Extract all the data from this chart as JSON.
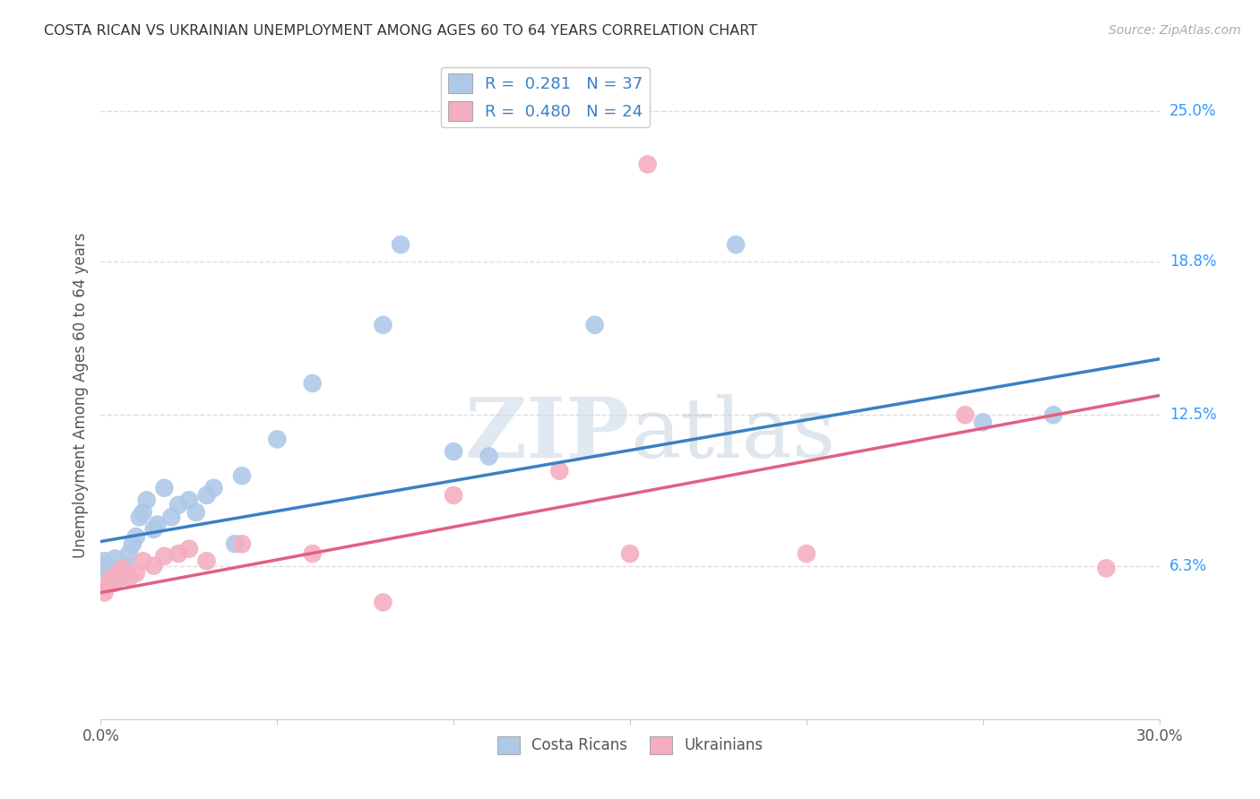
{
  "title": "COSTA RICAN VS UKRAINIAN UNEMPLOYMENT AMONG AGES 60 TO 64 YEARS CORRELATION CHART",
  "source": "Source: ZipAtlas.com",
  "ylabel": "Unemployment Among Ages 60 to 64 years",
  "xmin": 0.0,
  "xmax": 0.3,
  "ymin": 0.0,
  "ymax": 0.266,
  "ytick_labels": [
    "6.3%",
    "12.5%",
    "18.8%",
    "25.0%"
  ],
  "ytick_values": [
    0.063,
    0.125,
    0.188,
    0.25
  ],
  "xtick_values": [
    0.0,
    0.05,
    0.1,
    0.15,
    0.2,
    0.25,
    0.3
  ],
  "blue_label": "Costa Ricans",
  "pink_label": "Ukrainians",
  "blue_R": "0.281",
  "blue_N": "37",
  "pink_R": "0.480",
  "pink_N": "24",
  "blue_color": "#aec9e8",
  "pink_color": "#f4aec0",
  "blue_line_color": "#3b7fc4",
  "pink_line_color": "#e06080",
  "blue_x": [
    0.001,
    0.001,
    0.002,
    0.002,
    0.003,
    0.003,
    0.004,
    0.005,
    0.006,
    0.007,
    0.008,
    0.009,
    0.01,
    0.011,
    0.012,
    0.013,
    0.015,
    0.016,
    0.018,
    0.02,
    0.022,
    0.025,
    0.027,
    0.03,
    0.032,
    0.038,
    0.04,
    0.05,
    0.06,
    0.08,
    0.085,
    0.1,
    0.11,
    0.14,
    0.18,
    0.25,
    0.27
  ],
  "blue_y": [
    0.062,
    0.065,
    0.06,
    0.063,
    0.058,
    0.062,
    0.066,
    0.061,
    0.059,
    0.063,
    0.068,
    0.072,
    0.075,
    0.083,
    0.085,
    0.09,
    0.078,
    0.08,
    0.095,
    0.083,
    0.088,
    0.09,
    0.085,
    0.092,
    0.095,
    0.072,
    0.1,
    0.115,
    0.138,
    0.162,
    0.195,
    0.11,
    0.108,
    0.162,
    0.195,
    0.122,
    0.125
  ],
  "pink_x": [
    0.001,
    0.002,
    0.003,
    0.004,
    0.005,
    0.006,
    0.008,
    0.01,
    0.012,
    0.015,
    0.018,
    0.022,
    0.025,
    0.03,
    0.04,
    0.06,
    0.08,
    0.1,
    0.13,
    0.15,
    0.155,
    0.2,
    0.245,
    0.285
  ],
  "pink_y": [
    0.052,
    0.055,
    0.058,
    0.056,
    0.06,
    0.062,
    0.058,
    0.06,
    0.065,
    0.063,
    0.067,
    0.068,
    0.07,
    0.065,
    0.072,
    0.068,
    0.048,
    0.092,
    0.102,
    0.068,
    0.228,
    0.068,
    0.125,
    0.062
  ],
  "blue_line_x": [
    0.0,
    0.3
  ],
  "blue_line_y": [
    0.073,
    0.148
  ],
  "pink_line_x": [
    0.0,
    0.3
  ],
  "pink_line_y": [
    0.052,
    0.133
  ],
  "watermark_zip": "ZIP",
  "watermark_atlas": "atlas",
  "background_color": "#ffffff",
  "grid_color": "#dddddd"
}
